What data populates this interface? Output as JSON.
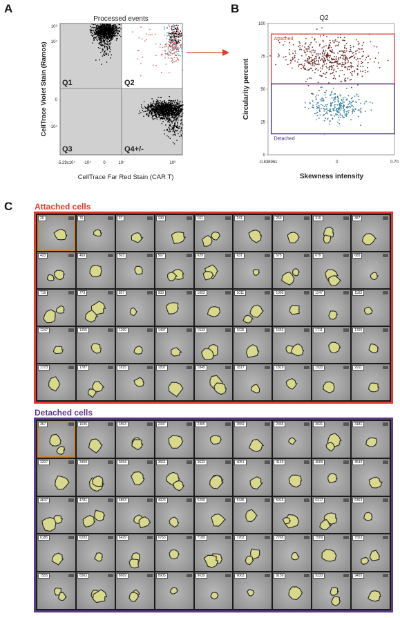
{
  "panels": {
    "a": "A",
    "b": "B",
    "c": "C"
  },
  "chart_data": [
    {
      "type": "scatter",
      "title": "Processed events",
      "xlabel": "CellTrace Far Red Stain (CAR T)",
      "ylabel": "CellTrace Violet Stain (Ramos)",
      "x_scale": "biexponential",
      "y_scale": "biexponential",
      "x_ticks": [
        "-5.29x10⁴",
        "-10⁴",
        "0",
        "10⁴",
        "10⁶"
      ],
      "y_ticks": [
        "10⁶",
        "10⁴",
        "0",
        "-10⁴"
      ],
      "quadrants": [
        "Q1",
        "Q2",
        "Q3",
        "Q4+/-"
      ],
      "gates": [
        {
          "name": "Q1",
          "shaded": true
        },
        {
          "name": "Q2",
          "shaded": false
        },
        {
          "name": "Q3",
          "shaded": true
        },
        {
          "name": "Q4+/-",
          "shaded": true
        }
      ],
      "populations": [
        {
          "name": "Ramos",
          "quadrant": "Q1",
          "color": "#000000"
        },
        {
          "name": "CAR T",
          "quadrant": "Q4+/-",
          "color": "#000000"
        },
        {
          "name": "Attached",
          "quadrant": "Q2",
          "color": "#d8494a"
        },
        {
          "name": "Detached",
          "quadrant": "Q2",
          "color": "#3f8fa8"
        }
      ]
    },
    {
      "type": "scatter",
      "title": "Q2",
      "xlabel": "Skewness intensity",
      "ylabel": "Circularity percent",
      "x_ticks": [
        "-0.838961",
        "0",
        "0.70"
      ],
      "y_ticks": [
        "0",
        "25",
        "50",
        "75",
        "100"
      ],
      "xlim": [
        -0.838961,
        0.7
      ],
      "ylim": [
        0,
        100
      ],
      "gates": [
        {
          "name": "Attached",
          "color": "#e0392f",
          "x": [
            -0.8,
            0.7
          ],
          "y": [
            54,
            92
          ]
        },
        {
          "name": "Detached",
          "color": "#3d2a6b",
          "x": [
            -0.8,
            0.7
          ],
          "y": [
            16,
            54
          ]
        }
      ],
      "series": [
        {
          "name": "Attached",
          "color": "#6b2a2a",
          "n": 500,
          "x_center": -0.1,
          "x_spread": 0.25,
          "y_center": 73,
          "y_spread": 8
        },
        {
          "name": "Detached",
          "color": "#2e7d94",
          "n": 260,
          "x_center": 0.0,
          "x_spread": 0.18,
          "y_center": 37,
          "y_spread": 6
        }
      ]
    }
  ],
  "arrow_color": "#e0392f",
  "gallery": {
    "attached": {
      "title": "Attached cells",
      "color": "#e0392f",
      "ids": [
        "26",
        "76",
        "97",
        "139",
        "161",
        "241",
        "259",
        "319",
        "387",
        "423",
        "469",
        "503",
        "567",
        "629",
        "631",
        "575",
        "679",
        "685",
        "719",
        "773",
        "857",
        "933",
        "1003",
        "1011",
        "1093",
        "1147",
        "1183",
        "1247",
        "1255",
        "1269",
        "1497",
        "1533",
        "1625",
        "1653",
        "1711",
        "1765",
        "1773",
        "1787",
        "1815",
        "1837",
        "1849",
        "1817",
        "1819",
        "1933",
        "2911"
      ]
    },
    "detached": {
      "title": "Detached cells",
      "color": "#5b3a86",
      "ids": [
        "367",
        "1035",
        "1863",
        "2337",
        "2405",
        "3559",
        "2465",
        "3031",
        "3181",
        "3207",
        "3409",
        "3654",
        "3661",
        "3633",
        "4051",
        "4143",
        "4509",
        "4543",
        "4637",
        "4781",
        "4853",
        "4923",
        "5299",
        "5335",
        "5915",
        "6317",
        "6363",
        "6185",
        "6293",
        "6429",
        "6763",
        "7189",
        "7263",
        "7265",
        "7509",
        "7553",
        "7555",
        "8363",
        "8869",
        "8905",
        "9039",
        "9063",
        "9159",
        "9333",
        "9455"
      ]
    }
  }
}
